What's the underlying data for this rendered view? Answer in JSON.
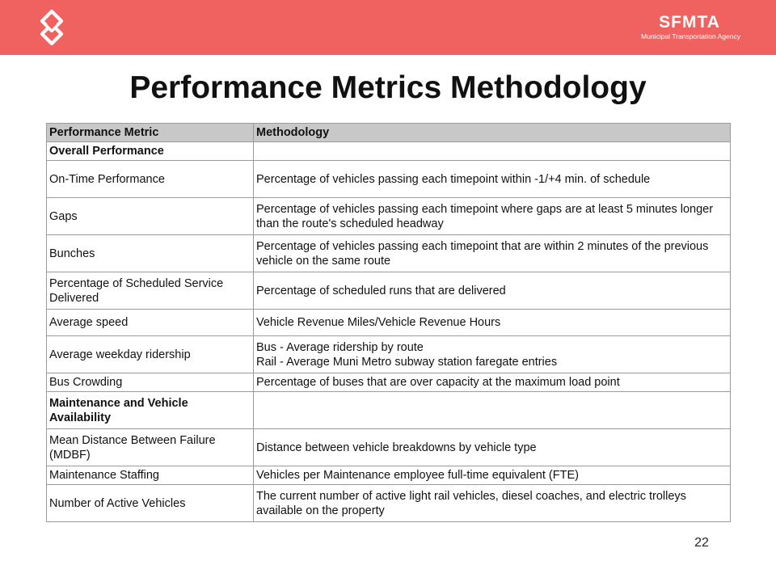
{
  "brand": {
    "name": "SFMTA",
    "subtitle": "Municipal Transportation Agency",
    "logo_icon": "sfmta-worm-logo-icon",
    "banner_color": "#f0625f"
  },
  "slide": {
    "title": "Performance Metrics Methodology",
    "page_number": "22"
  },
  "table": {
    "headers": {
      "metric": "Performance Metric",
      "methodology": "Methodology"
    },
    "rows": [
      {
        "metric": "Overall Performance",
        "methodology": ""
      },
      {
        "metric": "On-Time Performance",
        "methodology": "Percentage of vehicles passing each timepoint within -1/+4 min. of schedule"
      },
      {
        "metric": "Gaps",
        "methodology": "Percentage of vehicles passing each timepoint where gaps are at least 5 minutes longer than the route's scheduled headway"
      },
      {
        "metric": "Bunches",
        "methodology": "Percentage of vehicles passing each timepoint that are within 2 minutes of the previous vehicle on the same route"
      },
      {
        "metric": "Percentage of Scheduled Service Delivered",
        "methodology": "Percentage of scheduled runs that are delivered"
      },
      {
        "metric": "Average speed",
        "methodology": "Vehicle Revenue Miles/Vehicle Revenue Hours"
      },
      {
        "metric": "Average weekday ridership",
        "methodology_line1": "Bus - Average ridership by route",
        "methodology_line2": "Rail - Average Muni Metro subway station faregate entries"
      },
      {
        "metric": "Bus Crowding",
        "methodology": "Percentage of buses that are over capacity at the maximum load point"
      },
      {
        "metric": "Maintenance and Vehicle Availability",
        "methodology": ""
      },
      {
        "metric": "Mean Distance Between Failure (MDBF)",
        "methodology": "Distance between vehicle breakdowns by vehicle type"
      },
      {
        "metric": "Maintenance Staffing",
        "methodology": "Vehicles per Maintenance employee full-time equivalent (FTE)"
      },
      {
        "metric": "Number of Active Vehicles",
        "methodology": "The current number of active light rail vehicles, diesel coaches, and electric trolleys available on the property"
      }
    ]
  }
}
